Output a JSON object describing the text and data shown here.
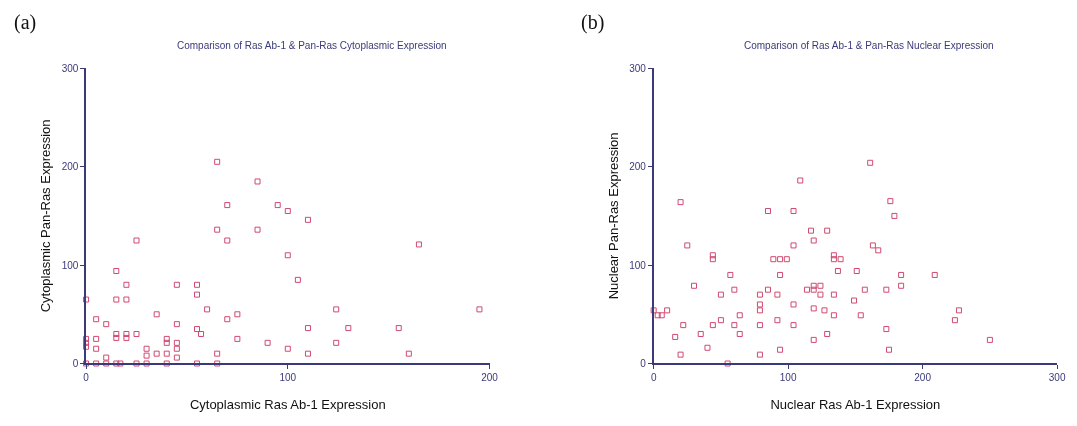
{
  "chart_data": [
    {
      "type": "scatter",
      "title": "Comparison of Ras Ab-1 & Pan-Ras Cytoplasmic Expression",
      "xlabel": "Cytoplasmic Ras Ab-1 Expression",
      "ylabel": "Cytoplasmic Pan-Ras Expression",
      "annotations": [
        "(a)"
      ],
      "xlim": [
        0,
        200
      ],
      "ylim": [
        0,
        300
      ],
      "xticks": [
        0,
        100,
        200
      ],
      "yticks": [
        0,
        100,
        200,
        300
      ],
      "marker": "square",
      "x": [
        65,
        85,
        70,
        95,
        100,
        110,
        65,
        85,
        70,
        25,
        165,
        100,
        105,
        15,
        20,
        45,
        55,
        55,
        0,
        15,
        20,
        60,
        124,
        195,
        35,
        75,
        5,
        70,
        10,
        45,
        25,
        15,
        20,
        55,
        57,
        110,
        130,
        155,
        0,
        5,
        15,
        20,
        40,
        75,
        0,
        40,
        45,
        90,
        124,
        0,
        5,
        30,
        45,
        100,
        30,
        35,
        40,
        10,
        45,
        65,
        110,
        160,
        0,
        5,
        10,
        15,
        17,
        25,
        30,
        40,
        55,
        65
      ],
      "series": [
        {
          "color": "#d04a70",
          "values": [
            205,
            185,
            161,
            161,
            155,
            146,
            136,
            136,
            125,
            125,
            121,
            110,
            85,
            94,
            80,
            80,
            80,
            70,
            65,
            65,
            65,
            55,
            55,
            55,
            50,
            50,
            45,
            45,
            40,
            40,
            30,
            30,
            30,
            35,
            30,
            36,
            36,
            36,
            25,
            25,
            26,
            26,
            25,
            25,
            21,
            21,
            21,
            21,
            21,
            17,
            15,
            15,
            15,
            15,
            8,
            10,
            10,
            6,
            6,
            10,
            10,
            10,
            0,
            0,
            0,
            0,
            0,
            0,
            0,
            0,
            0,
            0
          ]
        }
      ]
    },
    {
      "type": "scatter",
      "title": "Comparison of Ras Ab-1 & Pan-Ras Nuclear Expression",
      "xlabel": "Nuclear Ras Ab-1 Expression",
      "ylabel": "Nuclear Pan-Ras Expression",
      "annotations": [
        "(b)"
      ],
      "xlim": [
        0,
        300
      ],
      "ylim": [
        0,
        300
      ],
      "xticks": [
        0,
        100,
        200,
        300
      ],
      "yticks": [
        0,
        100,
        200,
        300
      ],
      "marker": "square",
      "x": [
        161,
        109,
        20,
        176,
        179,
        85,
        104,
        117,
        129,
        119,
        25,
        104,
        163,
        167,
        44,
        44,
        89,
        94,
        99,
        134,
        134,
        139,
        137,
        151,
        57,
        94,
        184,
        209,
        30,
        184,
        60,
        85,
        114,
        119,
        124,
        119,
        157,
        173,
        50,
        79,
        92,
        124,
        134,
        149,
        79,
        104,
        79,
        119,
        127,
        0,
        10,
        3,
        6,
        64,
        134,
        154,
        227,
        224,
        50,
        92,
        22,
        44,
        60,
        79,
        104,
        16,
        35,
        64,
        129,
        173,
        40,
        94,
        119,
        250,
        175,
        20,
        79,
        55
      ],
      "series": [
        {
          "color": "#d04a70",
          "values": [
            204,
            186,
            164,
            165,
            150,
            155,
            155,
            135,
            135,
            125,
            120,
            120,
            120,
            115,
            110,
            106,
            106,
            106,
            106,
            110,
            106,
            106,
            94,
            94,
            90,
            90,
            90,
            90,
            79,
            79,
            75,
            75,
            75,
            79,
            79,
            75,
            75,
            75,
            70,
            70,
            70,
            70,
            70,
            64,
            60,
            60,
            54,
            56,
            54,
            54,
            54,
            49,
            49,
            49,
            49,
            49,
            54,
            44,
            44,
            44,
            39,
            39,
            39,
            39,
            39,
            27,
            30,
            30,
            30,
            35,
            16,
            14,
            24,
            24,
            14,
            9,
            9,
            0
          ]
        }
      ]
    }
  ]
}
